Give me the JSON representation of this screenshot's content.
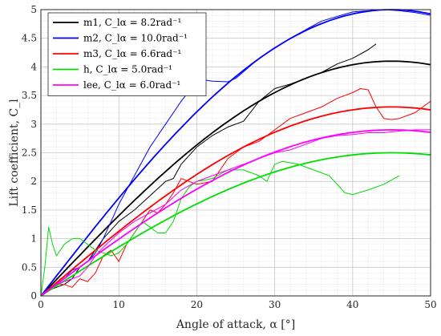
{
  "chart_data": {
    "type": "line",
    "xlabel": "Angle of attack, α [°]",
    "ylabel": "Lift coefficient, C_l",
    "xlim": [
      0,
      50
    ],
    "ylim": [
      0,
      5
    ],
    "xticks": [
      0,
      10,
      20,
      30,
      40,
      50
    ],
    "yticks": [
      0,
      0.5,
      1,
      1.5,
      2,
      2.5,
      3,
      3.5,
      4,
      4.5,
      5
    ],
    "grid": true,
    "minor_grid": true,
    "legend_position": "top-left",
    "series": [
      {
        "name": "m1",
        "legend_label": "m1, C_lα = 8.2rad⁻¹",
        "color": "#000000",
        "model_peak": [
          45,
          4.1
        ],
        "model_slope_per_rad": 8.2,
        "experimental": [
          [
            0,
            0
          ],
          [
            1,
            0.1
          ],
          [
            2,
            0.15
          ],
          [
            3,
            0.2
          ],
          [
            4,
            0.3
          ],
          [
            5,
            0.5
          ],
          [
            6,
            0.6
          ],
          [
            7,
            0.8
          ],
          [
            8,
            1.0
          ],
          [
            10,
            1.3
          ],
          [
            12,
            1.5
          ],
          [
            14,
            1.75
          ],
          [
            16,
            2.0
          ],
          [
            17,
            2.05
          ],
          [
            18,
            2.3
          ],
          [
            20,
            2.6
          ],
          [
            22,
            2.8
          ],
          [
            24,
            2.95
          ],
          [
            26,
            3.05
          ],
          [
            28,
            3.4
          ],
          [
            30,
            3.62
          ],
          [
            32,
            3.7
          ],
          [
            34,
            3.8
          ],
          [
            36,
            3.9
          ],
          [
            38,
            4.05
          ],
          [
            40,
            4.15
          ],
          [
            42,
            4.3
          ],
          [
            43,
            4.4
          ]
        ]
      },
      {
        "name": "m2",
        "legend_label": "m2, C_lα = 10.0rad⁻¹",
        "color": "#0000ff",
        "model_peak": [
          45,
          5.0
        ],
        "model_slope_per_rad": 10.0,
        "experimental": [
          [
            0,
            0
          ],
          [
            1,
            0.1
          ],
          [
            2,
            0.2
          ],
          [
            3,
            0.3
          ],
          [
            4,
            0.45
          ],
          [
            5,
            0.5
          ],
          [
            6,
            0.6
          ],
          [
            7,
            0.75
          ],
          [
            8,
            1.0
          ],
          [
            10,
            1.6
          ],
          [
            12,
            2.1
          ],
          [
            14,
            2.6
          ],
          [
            16,
            3.0
          ],
          [
            18,
            3.4
          ],
          [
            20,
            3.75
          ],
          [
            21,
            3.77
          ],
          [
            22,
            3.75
          ],
          [
            24,
            3.74
          ],
          [
            25,
            3.8
          ],
          [
            28,
            4.15
          ],
          [
            32,
            4.5
          ],
          [
            36,
            4.8
          ],
          [
            40,
            4.96
          ],
          [
            44,
            5.0
          ],
          [
            46,
            4.98
          ],
          [
            48,
            4.95
          ],
          [
            50,
            4.9
          ]
        ]
      },
      {
        "name": "m3",
        "legend_label": "m3, C_lα = 6.6rad⁻¹",
        "color": "#ff0000",
        "model_peak": [
          45,
          3.3
        ],
        "model_slope_per_rad": 6.6,
        "experimental": [
          [
            0,
            0
          ],
          [
            1,
            0.1
          ],
          [
            2,
            0.2
          ],
          [
            3,
            0.2
          ],
          [
            4,
            0.15
          ],
          [
            5,
            0.3
          ],
          [
            6,
            0.25
          ],
          [
            7,
            0.4
          ],
          [
            8,
            0.7
          ],
          [
            9,
            0.8
          ],
          [
            10,
            0.6
          ],
          [
            11,
            0.9
          ],
          [
            12,
            1.1
          ],
          [
            13,
            1.3
          ],
          [
            14,
            1.5
          ],
          [
            15,
            1.45
          ],
          [
            16,
            1.6
          ],
          [
            17,
            1.8
          ],
          [
            18,
            2.05
          ],
          [
            19,
            2.0
          ],
          [
            20,
            1.95
          ],
          [
            22,
            2.0
          ],
          [
            24,
            2.4
          ],
          [
            26,
            2.6
          ],
          [
            28,
            2.7
          ],
          [
            30,
            2.9
          ],
          [
            32,
            3.1
          ],
          [
            34,
            3.2
          ],
          [
            36,
            3.3
          ],
          [
            38,
            3.45
          ],
          [
            40,
            3.55
          ],
          [
            41,
            3.62
          ],
          [
            42,
            3.6
          ],
          [
            43,
            3.3
          ],
          [
            44,
            3.1
          ],
          [
            45,
            3.08
          ],
          [
            46,
            3.1
          ],
          [
            48,
            3.2
          ],
          [
            50,
            3.4
          ]
        ]
      },
      {
        "name": "h",
        "legend_label": "h, C_lα = 5.0rad⁻¹",
        "color": "#00dd00",
        "model_peak": [
          45,
          2.5
        ],
        "model_slope_per_rad": 5.0,
        "experimental": [
          [
            0,
            0
          ],
          [
            0.5,
            0.5
          ],
          [
            1,
            1.2
          ],
          [
            1.5,
            0.9
          ],
          [
            2,
            0.7
          ],
          [
            3,
            0.9
          ],
          [
            4,
            1.0
          ],
          [
            5,
            1.0
          ],
          [
            6,
            0.9
          ],
          [
            7,
            0.8
          ],
          [
            8,
            0.75
          ],
          [
            9,
            0.7
          ],
          [
            10,
            0.75
          ],
          [
            11,
            0.9
          ],
          [
            12,
            1.1
          ],
          [
            13,
            1.3
          ],
          [
            14,
            1.2
          ],
          [
            15,
            1.1
          ],
          [
            16,
            1.1
          ],
          [
            17,
            1.3
          ],
          [
            18,
            1.7
          ],
          [
            19,
            1.9
          ],
          [
            20,
            2.0
          ],
          [
            22,
            2.05
          ],
          [
            24,
            2.2
          ],
          [
            26,
            2.2
          ],
          [
            28,
            2.1
          ],
          [
            29,
            2.0
          ],
          [
            30,
            2.3
          ],
          [
            31,
            2.35
          ],
          [
            33,
            2.3
          ],
          [
            35,
            2.2
          ],
          [
            37,
            2.1
          ],
          [
            39,
            1.8
          ],
          [
            40,
            1.77
          ],
          [
            42,
            1.85
          ],
          [
            44,
            1.95
          ],
          [
            46,
            2.1
          ]
        ]
      },
      {
        "name": "lee",
        "legend_label": "lee, C_lα = 6.0rad⁻¹",
        "color": "#ff00ff",
        "model_peak": [
          45,
          2.9
        ],
        "model_slope_per_rad": 6.0,
        "experimental": [
          [
            0,
            0
          ],
          [
            1,
            0.1
          ],
          [
            2,
            0.2
          ],
          [
            3,
            0.25
          ],
          [
            4,
            0.3
          ],
          [
            5,
            0.35
          ],
          [
            6,
            0.5
          ],
          [
            7,
            0.7
          ],
          [
            8,
            0.85
          ],
          [
            10,
            1.1
          ],
          [
            12,
            1.3
          ],
          [
            14,
            1.45
          ],
          [
            16,
            1.6
          ],
          [
            18,
            1.85
          ],
          [
            20,
            2.0
          ],
          [
            22,
            2.1
          ],
          [
            24,
            2.2
          ],
          [
            26,
            2.3
          ],
          [
            28,
            2.4
          ],
          [
            30,
            2.5
          ],
          [
            32,
            2.55
          ],
          [
            34,
            2.65
          ],
          [
            36,
            2.75
          ],
          [
            38,
            2.8
          ],
          [
            40,
            2.82
          ],
          [
            42,
            2.85
          ],
          [
            44,
            2.85
          ],
          [
            46,
            2.88
          ],
          [
            48,
            2.9
          ],
          [
            50,
            2.9
          ]
        ]
      }
    ]
  }
}
